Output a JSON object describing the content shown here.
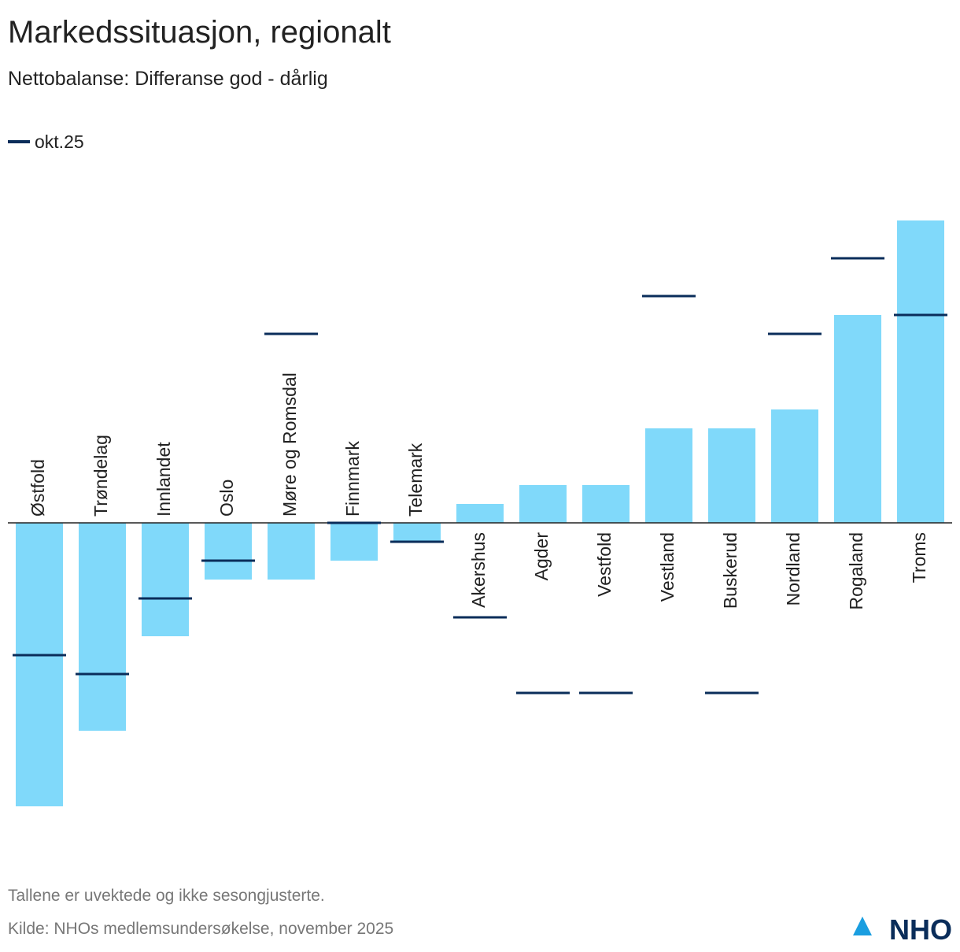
{
  "chart_data": {
    "type": "bar",
    "title": "Markedssituasjon, regionalt",
    "subtitle": "Nettobalanse: Differanse god - dårlig",
    "categories": [
      "Østfold",
      "Trøndelag",
      "Innlandet",
      "Oslo",
      "Møre og Romsdal",
      "Finnmark",
      "Telemark",
      "Akershus",
      "Agder",
      "Vestfold",
      "Vestland",
      "Buskerud",
      "Nordland",
      "Rogaland",
      "Troms"
    ],
    "values": [
      -30,
      -22,
      -12,
      -6,
      -6,
      -4,
      -2,
      2,
      4,
      4,
      10,
      10,
      12,
      22,
      32
    ],
    "color": "#80d9fa",
    "markers": {
      "name": "okt.25",
      "color": "#0a2d5a",
      "values": [
        -14,
        -16,
        -8,
        -4,
        20,
        0,
        -2,
        -10,
        -18,
        -18,
        24,
        -18,
        20,
        28,
        22
      ]
    },
    "ylim": [
      -33,
      36
    ],
    "notes": [
      "Tallene er uvektede og ikke sesongjusterte.",
      "Kilde: NHOs medlemsundersøkelse, november 2025"
    ],
    "logo": "NHO"
  }
}
